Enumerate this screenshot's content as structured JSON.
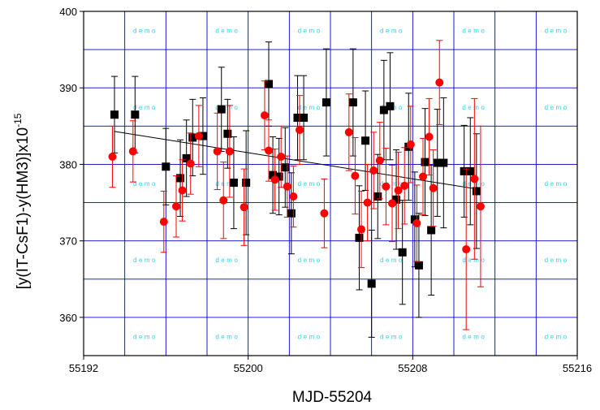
{
  "chart_data": {
    "type": "scatter",
    "title": "",
    "xlabel": "MJD-55204",
    "ylabel": "[y(IT-CsF1)-y(HM3)]x10",
    "ylabel_exponent": "-15",
    "xlim": [
      55192,
      55216
    ],
    "ylim": [
      355,
      400
    ],
    "x_ticks": [
      "55192",
      "55200",
      "55208",
      "55216"
    ],
    "y_ticks": [
      "360",
      "370",
      "380",
      "390",
      "400"
    ],
    "grid": true,
    "grid_color": "#0000cc",
    "watermark_text": "demo",
    "series": [
      {
        "marker": "square",
        "color": "#000000",
        "points": [
          {
            "x": 55193.5,
            "y": 386.5,
            "err": 5.0
          },
          {
            "x": 55194.5,
            "y": 386.5,
            "err": 5.0
          },
          {
            "x": 55196.0,
            "y": 379.7,
            "err": 5.0
          },
          {
            "x": 55196.7,
            "y": 378.2,
            "err": 5.0
          },
          {
            "x": 55197.0,
            "y": 380.8,
            "err": 5.0
          },
          {
            "x": 55197.3,
            "y": 383.5,
            "err": 5.0
          },
          {
            "x": 55197.8,
            "y": 383.7,
            "err": 5.0
          },
          {
            "x": 55198.7,
            "y": 387.2,
            "err": 5.5
          },
          {
            "x": 55199.0,
            "y": 384.0,
            "err": 4.5
          },
          {
            "x": 55199.3,
            "y": 377.6,
            "err": 6.0
          },
          {
            "x": 55199.9,
            "y": 377.6,
            "err": 6.8
          },
          {
            "x": 55201.0,
            "y": 390.5,
            "err": 5.5
          },
          {
            "x": 55201.2,
            "y": 378.6,
            "err": 5.0
          },
          {
            "x": 55201.5,
            "y": 378.4,
            "err": 5.0
          },
          {
            "x": 55201.8,
            "y": 379.6,
            "err": 5.2
          },
          {
            "x": 55202.1,
            "y": 373.6,
            "err": 5.3
          },
          {
            "x": 55202.4,
            "y": 386.1,
            "err": 5.5
          },
          {
            "x": 55202.7,
            "y": 386.1,
            "err": 5.5
          },
          {
            "x": 55203.8,
            "y": 388.1,
            "err": 7.0
          },
          {
            "x": 55205.1,
            "y": 388.1,
            "err": 7.0
          },
          {
            "x": 55205.4,
            "y": 370.4,
            "err": 6.8
          },
          {
            "x": 55205.7,
            "y": 383.1,
            "err": 6.5
          },
          {
            "x": 55206.0,
            "y": 364.4,
            "err": 7.0
          },
          {
            "x": 55206.3,
            "y": 375.8,
            "err": 5.5
          },
          {
            "x": 55206.6,
            "y": 387.1,
            "err": 6.5
          },
          {
            "x": 55206.9,
            "y": 387.6,
            "err": 7.0
          },
          {
            "x": 55207.2,
            "y": 375.4,
            "err": 6.5
          },
          {
            "x": 55207.5,
            "y": 368.5,
            "err": 6.8
          },
          {
            "x": 55207.8,
            "y": 382.3,
            "err": 7.0
          },
          {
            "x": 55208.1,
            "y": 372.8,
            "err": 6.2
          },
          {
            "x": 55208.3,
            "y": 366.8,
            "err": 6.8
          },
          {
            "x": 55208.6,
            "y": 380.3,
            "err": 7.0
          },
          {
            "x": 55208.9,
            "y": 371.4,
            "err": 8.5
          },
          {
            "x": 55209.2,
            "y": 380.2,
            "err": 7.0
          },
          {
            "x": 55209.5,
            "y": 380.2,
            "err": 8.5
          },
          {
            "x": 55210.5,
            "y": 379.1,
            "err": 6.0
          },
          {
            "x": 55210.8,
            "y": 379.1,
            "err": 7.0
          },
          {
            "x": 55211.1,
            "y": 376.5,
            "err": 7.5
          }
        ]
      },
      {
        "marker": "circle",
        "color": "#ff0000",
        "points": [
          {
            "x": 55193.4,
            "y": 381.0,
            "err": 4.0
          },
          {
            "x": 55194.4,
            "y": 381.7,
            "err": 4.0
          },
          {
            "x": 55195.9,
            "y": 372.5,
            "err": 4.0
          },
          {
            "x": 55196.5,
            "y": 374.5,
            "err": 4.0
          },
          {
            "x": 55196.8,
            "y": 376.6,
            "err": 4.0
          },
          {
            "x": 55197.2,
            "y": 380.1,
            "err": 4.0
          },
          {
            "x": 55197.6,
            "y": 383.7,
            "err": 4.0
          },
          {
            "x": 55198.5,
            "y": 381.7,
            "err": 5.0
          },
          {
            "x": 55198.8,
            "y": 375.3,
            "err": 5.0
          },
          {
            "x": 55199.1,
            "y": 381.7,
            "err": 6.0
          },
          {
            "x": 55199.8,
            "y": 374.4,
            "err": 5.0
          },
          {
            "x": 55200.8,
            "y": 386.4,
            "err": 4.5
          },
          {
            "x": 55201.0,
            "y": 381.8,
            "err": 4.0
          },
          {
            "x": 55201.3,
            "y": 378.0,
            "err": 4.0
          },
          {
            "x": 55201.6,
            "y": 381.0,
            "err": 4.0
          },
          {
            "x": 55201.9,
            "y": 377.1,
            "err": 4.0
          },
          {
            "x": 55202.2,
            "y": 375.8,
            "err": 4.0
          },
          {
            "x": 55202.5,
            "y": 384.5,
            "err": 4.5
          },
          {
            "x": 55203.7,
            "y": 373.6,
            "err": 4.5
          },
          {
            "x": 55204.9,
            "y": 384.2,
            "err": 5.0
          },
          {
            "x": 55205.2,
            "y": 378.5,
            "err": 5.0
          },
          {
            "x": 55205.5,
            "y": 371.5,
            "err": 5.0
          },
          {
            "x": 55205.8,
            "y": 375.0,
            "err": 5.0
          },
          {
            "x": 55206.1,
            "y": 379.2,
            "err": 5.0
          },
          {
            "x": 55206.4,
            "y": 380.5,
            "err": 5.0
          },
          {
            "x": 55206.7,
            "y": 377.1,
            "err": 5.0
          },
          {
            "x": 55207.0,
            "y": 374.9,
            "err": 5.0
          },
          {
            "x": 55207.3,
            "y": 376.6,
            "err": 5.0
          },
          {
            "x": 55207.6,
            "y": 377.2,
            "err": 5.0
          },
          {
            "x": 55207.9,
            "y": 382.6,
            "err": 5.0
          },
          {
            "x": 55208.2,
            "y": 372.3,
            "err": 5.0
          },
          {
            "x": 55208.5,
            "y": 378.4,
            "err": 5.0
          },
          {
            "x": 55208.8,
            "y": 383.6,
            "err": 5.0
          },
          {
            "x": 55209.0,
            "y": 376.9,
            "err": 5.0
          },
          {
            "x": 55209.3,
            "y": 390.7,
            "err": 5.5
          },
          {
            "x": 55210.6,
            "y": 368.9,
            "err": 10.5
          },
          {
            "x": 55211.0,
            "y": 378.1,
            "err": 10.5
          },
          {
            "x": 55211.3,
            "y": 374.5,
            "err": 10.5
          }
        ]
      }
    ],
    "trendline": {
      "x": [
        55193.5,
        55211.3
      ],
      "y": [
        384.3,
        376.7
      ]
    }
  }
}
